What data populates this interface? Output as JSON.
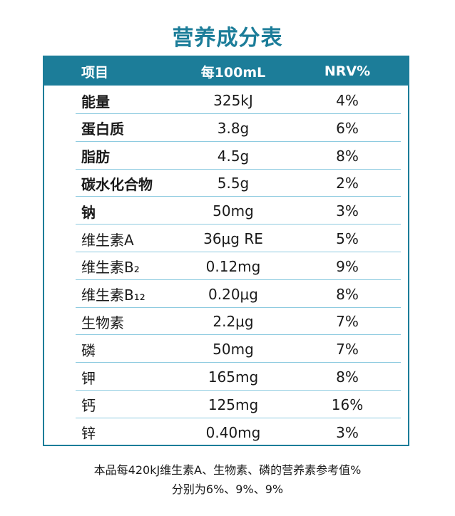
{
  "title": "营养成分表",
  "table": {
    "header": [
      "项目",
      "每100mL",
      "NRV%"
    ],
    "rows": [
      [
        "能量",
        "325kJ",
        "4%"
      ],
      [
        "蛋白质",
        "3.8g",
        "6%"
      ],
      [
        "脂肪",
        "4.5g",
        "8%"
      ],
      [
        "碳水化合物",
        "5.5g",
        "2%"
      ],
      [
        "钠",
        "50mg",
        "3%"
      ],
      [
        "维生素A",
        "36μg RE",
        "5%"
      ],
      [
        "维生素B₂",
        "0.12mg",
        "9%"
      ],
      [
        "维生素B₁₂",
        "0.20μg",
        "8%"
      ],
      [
        "生物素",
        "2.2μg",
        "7%"
      ],
      [
        "磷",
        "50mg",
        "7%"
      ],
      [
        "钾",
        "165mg",
        "8%"
      ],
      [
        "钙",
        "125mg",
        "16%"
      ],
      [
        "锌",
        "0.40mg",
        "3%"
      ]
    ]
  },
  "notes": [
    "本品每420kJ维生素A、生物素、磷的营养素参考值%",
    "分别为6%、9%、9%"
  ]
}
